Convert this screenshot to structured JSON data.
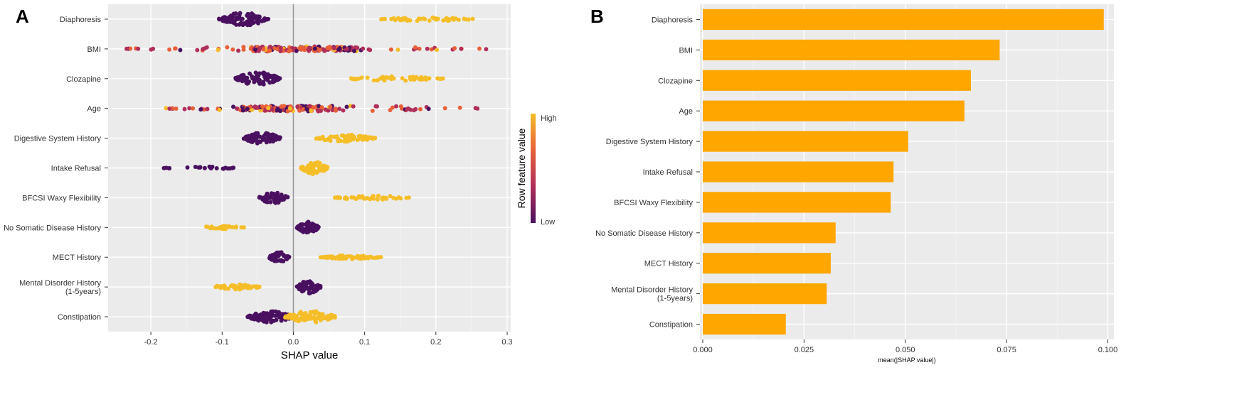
{
  "panels": {
    "a": "A",
    "b": "B"
  },
  "chart_data": [
    {
      "type": "scatter",
      "subtype": "beeswarm",
      "title": "",
      "xlabel": "SHAP value",
      "ylabel": "",
      "xlim": [
        -0.26,
        0.305
      ],
      "x_ticks": [
        -0.2,
        -0.1,
        0.0,
        0.1,
        0.2,
        0.3
      ],
      "x_tick_labels": [
        "-0.2",
        "-0.1",
        "0.0",
        "0.1",
        "0.2",
        "0.3"
      ],
      "grid": true,
      "zero_line": 0.0,
      "features": [
        "Diaphoresis",
        "BMI",
        "Clozapine",
        "Age",
        "Digestive System History",
        "Intake Refusal",
        "BFCSI Waxy Flexibility",
        "No Somatic Disease History",
        "MECT History",
        [
          "Mental Disorder History",
          "(1-5years)"
        ],
        "Constipation"
      ],
      "legend": {
        "title": "Row feature value",
        "high": "High",
        "low": "Low",
        "colors": [
          "#f5be28",
          "#e8603a",
          "#b02f5a",
          "#4a1060"
        ]
      },
      "distributions": [
        {
          "groups": [
            {
              "c": [
                -0.105,
                -0.035
              ],
              "n": 90,
              "color": 0,
              "amp": 1.0
            },
            {
              "c": [
                0.12,
                0.255
              ],
              "n": 45,
              "color": 1,
              "amp": 0.3
            }
          ]
        },
        {
          "groups": [
            {
              "c": [
                -0.235,
                0.28
              ],
              "n": 180,
              "color": "mix",
              "amp": 0.4,
              "dense": [
                -0.06,
                0.09
              ]
            }
          ]
        },
        {
          "groups": [
            {
              "c": [
                -0.082,
                -0.018
              ],
              "n": 100,
              "color": 0,
              "amp": 1.0
            },
            {
              "c": [
                0.07,
                0.21
              ],
              "n": 50,
              "color": 1,
              "amp": 0.35
            }
          ]
        },
        {
          "groups": [
            {
              "c": [
                -0.18,
                0.262
              ],
              "n": 170,
              "color": "mix",
              "amp": 0.45,
              "dense": [
                -0.08,
                0.06
              ]
            }
          ]
        },
        {
          "groups": [
            {
              "c": [
                -0.07,
                -0.018
              ],
              "n": 80,
              "color": 0,
              "amp": 0.9
            },
            {
              "c": [
                0.03,
                0.115
              ],
              "n": 75,
              "color": 1,
              "amp": 0.55
            }
          ]
        },
        {
          "groups": [
            {
              "c": [
                -0.185,
                -0.078
              ],
              "n": 22,
              "color": 0,
              "amp": 0.25
            },
            {
              "c": [
                0.01,
                0.048
              ],
              "n": 90,
              "color": 1,
              "amp": 1.0
            }
          ]
        },
        {
          "groups": [
            {
              "c": [
                -0.048,
                -0.008
              ],
              "n": 60,
              "color": 0,
              "amp": 0.9
            },
            {
              "c": [
                0.055,
                0.165
              ],
              "n": 45,
              "color": 1,
              "amp": 0.3
            }
          ]
        },
        {
          "groups": [
            {
              "c": [
                -0.135,
                -0.068
              ],
              "n": 25,
              "color": 1,
              "amp": 0.25
            },
            {
              "c": [
                0.005,
                0.036
              ],
              "n": 60,
              "color": 0,
              "amp": 0.9
            }
          ]
        },
        {
          "groups": [
            {
              "c": [
                -0.035,
                -0.005
              ],
              "n": 50,
              "color": 0,
              "amp": 0.8
            },
            {
              "c": [
                0.038,
                0.123
              ],
              "n": 60,
              "color": 1,
              "amp": 0.3
            }
          ]
        },
        {
          "groups": [
            {
              "c": [
                -0.115,
                -0.045
              ],
              "n": 40,
              "color": 1,
              "amp": 0.4
            },
            {
              "c": [
                0.005,
                0.038
              ],
              "n": 65,
              "color": 0,
              "amp": 1.0
            }
          ]
        },
        {
          "groups": [
            {
              "c": [
                -0.065,
                0.0
              ],
              "n": 90,
              "color": 0,
              "amp": 0.9
            },
            {
              "c": [
                -0.012,
                0.06
              ],
              "n": 90,
              "color": 1,
              "amp": 0.9
            }
          ]
        }
      ]
    },
    {
      "type": "bar",
      "orientation": "horizontal",
      "title": "",
      "xlabel": "mean(|SHAP value|)",
      "ylabel": "",
      "xlim": [
        -0.0007,
        0.1015
      ],
      "x_ticks": [
        0.0,
        0.025,
        0.05,
        0.075,
        0.1
      ],
      "x_tick_labels": [
        "0.000",
        "0.025",
        "0.050",
        "0.075",
        "0.100"
      ],
      "grid": true,
      "bar_color": "#ffa600",
      "categories": [
        "Diaphoresis",
        "BMI",
        "Clozapine",
        "Age",
        "Digestive System History",
        "Intake Refusal",
        "BFCSI Waxy Flexibility",
        "No Somatic Disease History",
        "MECT History",
        [
          "Mental Disorder History",
          "(1-5years)"
        ],
        "Constipation"
      ],
      "values": [
        0.099,
        0.0733,
        0.0662,
        0.0646,
        0.0507,
        0.0471,
        0.0464,
        0.0328,
        0.0316,
        0.0306,
        0.0205
      ]
    }
  ]
}
